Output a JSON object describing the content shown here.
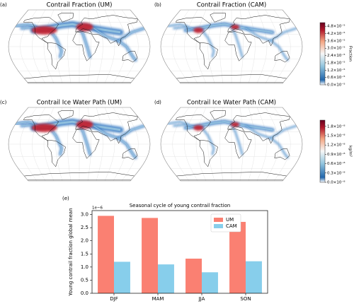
{
  "chart_data": [
    {
      "type": "map",
      "panel": "(a)",
      "title": "Contrail Fraction (UM)"
    },
    {
      "type": "map",
      "panel": "(b)",
      "title": "Contrail Fraction (CAM)",
      "colorbar": {
        "label": "Fraction",
        "lim": [
          0,
          5.1e-05
        ],
        "ticks": [
          {
            "value": 0,
            "label": "0.0×10⁻⁵"
          },
          {
            "value": 6e-06,
            "label": "0.6×10⁻⁵"
          },
          {
            "value": 1.2e-05,
            "label": "1.2×10⁻⁵"
          },
          {
            "value": 1.8e-05,
            "label": "1.8×10⁻⁵"
          },
          {
            "value": 2.4e-05,
            "label": "2.4×10⁻⁵"
          },
          {
            "value": 3e-05,
            "label": "3.0×10⁻⁵"
          },
          {
            "value": 3.6e-05,
            "label": "3.6×10⁻⁵"
          },
          {
            "value": 4.2e-05,
            "label": "4.2×10⁻⁵"
          },
          {
            "value": 4.8e-05,
            "label": "4.8×10⁻⁵"
          }
        ]
      }
    },
    {
      "type": "map",
      "panel": "(c)",
      "title": "Contrail Ice Water Path (UM)"
    },
    {
      "type": "map",
      "panel": "(d)",
      "title": "Contrail Ice Water Path (CAM)",
      "colorbar": {
        "label": "kg/m²",
        "lim": [
          0,
          2e-08
        ],
        "ticks": [
          {
            "value": 0,
            "label": "0.0×10⁻⁸"
          },
          {
            "value": 3e-09,
            "label": "0.3×10⁻⁸"
          },
          {
            "value": 6e-09,
            "label": "0.6×10⁻⁸"
          },
          {
            "value": 9e-09,
            "label": "0.9×10⁻⁸"
          },
          {
            "value": 1.2e-08,
            "label": "1.2×10⁻⁸"
          },
          {
            "value": 1.5e-08,
            "label": "1.5×10⁻⁸"
          },
          {
            "value": 1.8e-08,
            "label": "1.8×10⁻⁸"
          }
        ]
      }
    },
    {
      "type": "bar",
      "panel": "(e)",
      "title": "Seasonal cycle of young contrail fraction",
      "y_label": "Young contrail fraction global mean",
      "y_offset": "1e−6",
      "categories": [
        "DJF",
        "MAM",
        "JJA",
        "SON"
      ],
      "series": [
        {
          "name": "UM",
          "color": "#fa8072",
          "values": [
            2.95,
            2.87,
            1.32,
            2.72
          ]
        },
        {
          "name": "CAM",
          "color": "#87ceeb",
          "values": [
            1.2,
            1.1,
            0.8,
            1.22
          ]
        }
      ],
      "ylim": [
        0,
        3.15
      ],
      "yticks": [
        {
          "value": 0,
          "label": "0.0"
        },
        {
          "value": 0.5,
          "label": "0.5"
        },
        {
          "value": 1,
          "label": "1.0"
        },
        {
          "value": 1.5,
          "label": "1.5"
        },
        {
          "value": 2,
          "label": "2.0"
        },
        {
          "value": 2.5,
          "label": "2.5"
        },
        {
          "value": 3,
          "label": "3.0"
        }
      ],
      "legend": "upper right"
    }
  ]
}
